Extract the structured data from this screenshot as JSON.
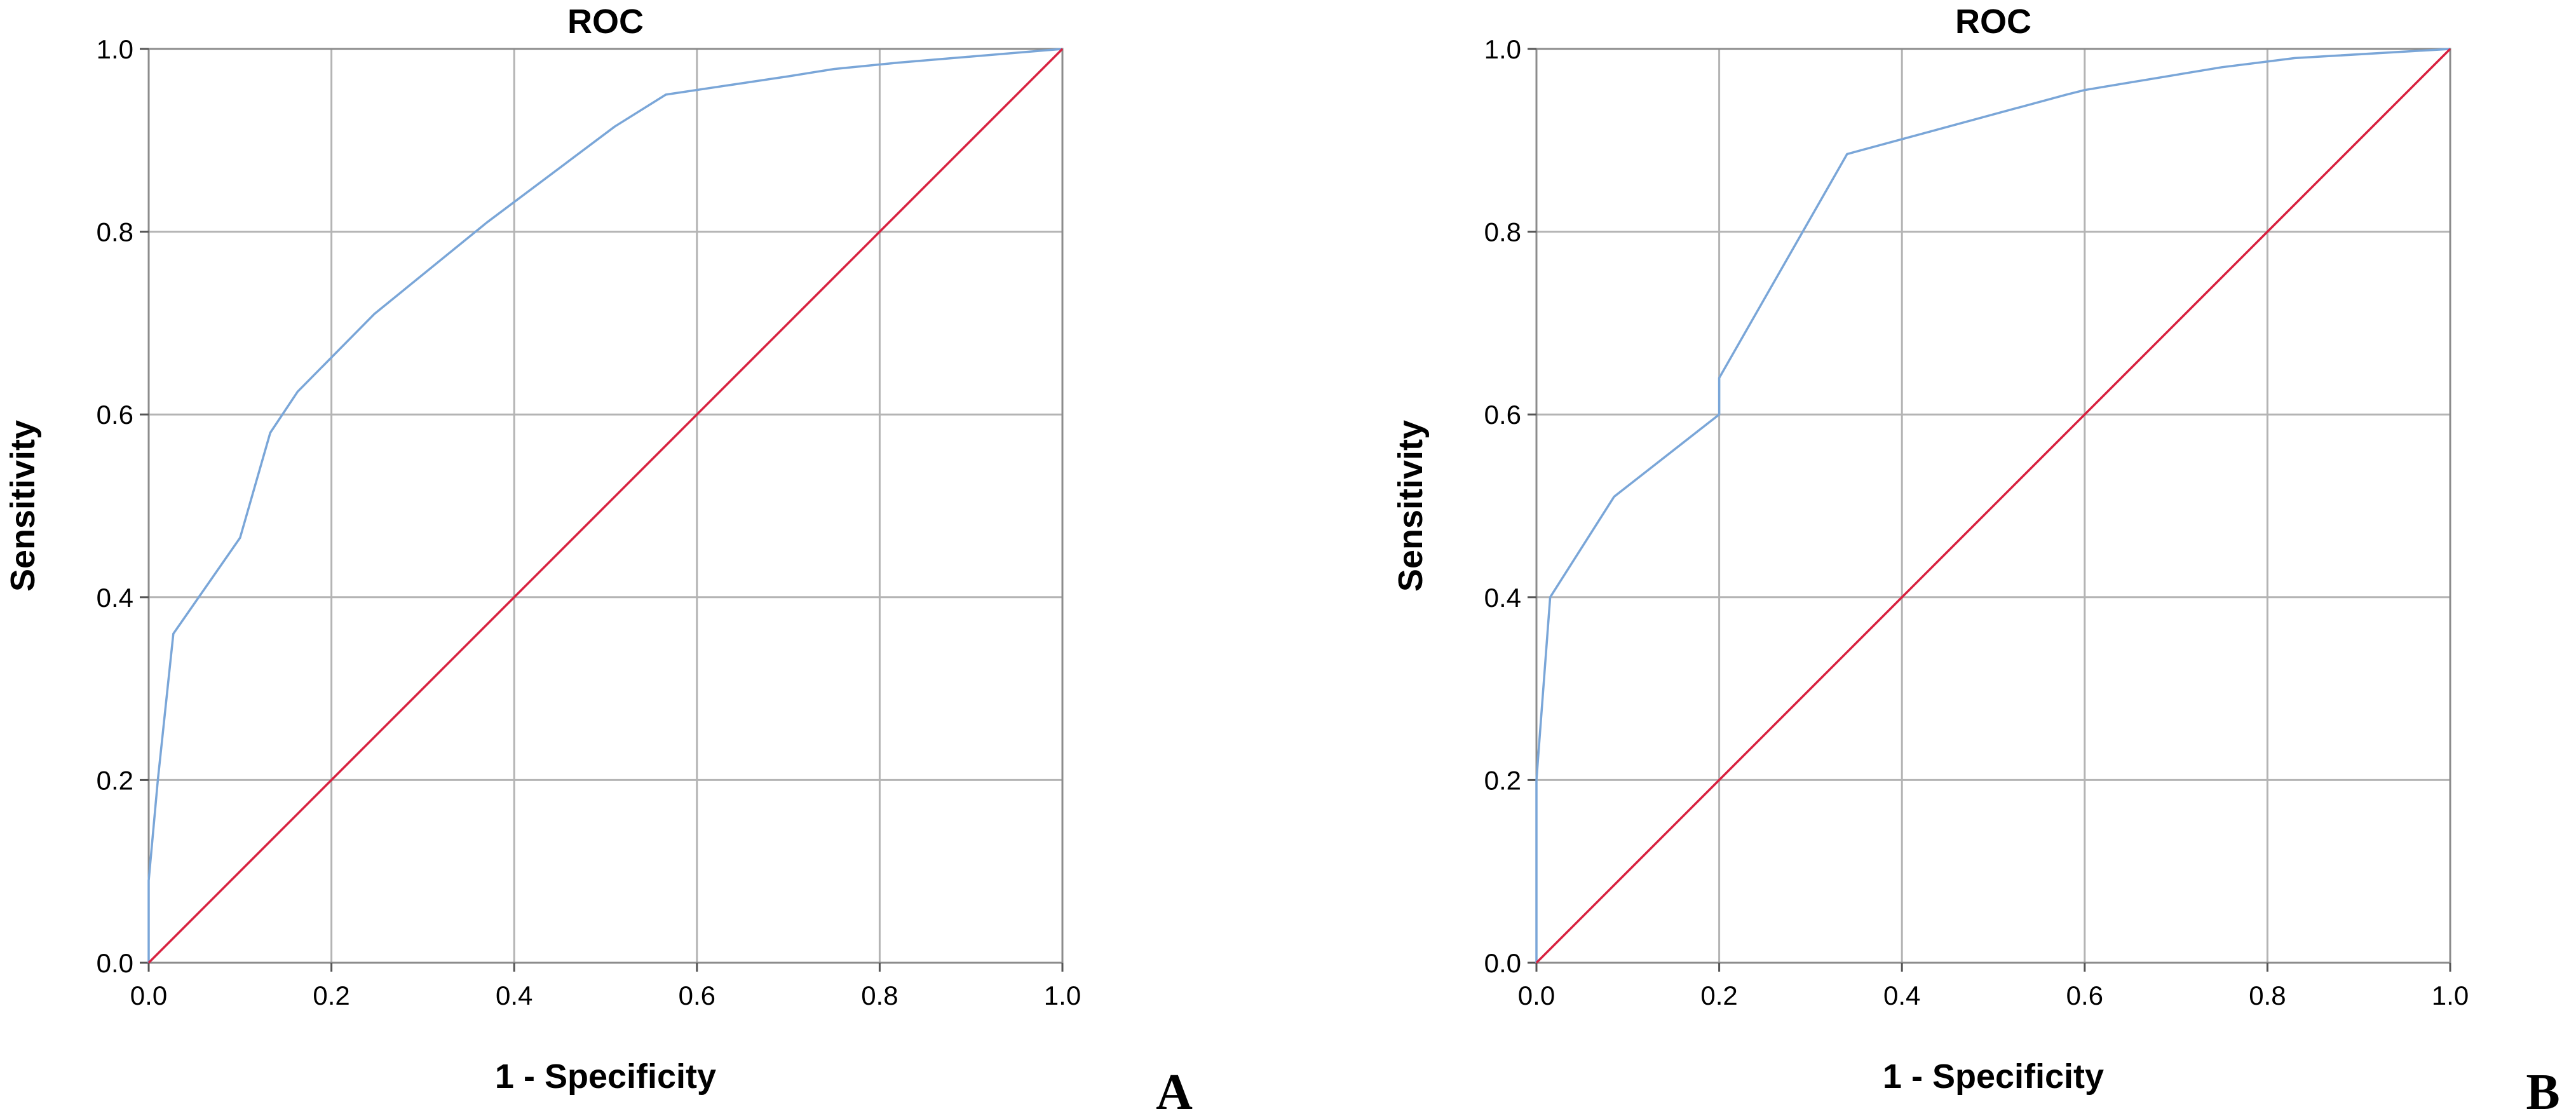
{
  "chart_data": [
    {
      "type": "line",
      "panel_label": "A",
      "title": "ROC",
      "xlabel": "1 - Specificity",
      "ylabel": "Sensitivity",
      "xlim": [
        0,
        1
      ],
      "ylim": [
        0,
        1
      ],
      "xticks": [
        "0.0",
        "0.2",
        "0.4",
        "0.6",
        "0.8",
        "1.0"
      ],
      "yticks": [
        "0.0",
        "0.2",
        "0.4",
        "0.6",
        "0.8",
        "1.0"
      ],
      "grid": true,
      "series": [
        {
          "color": "#7aa6d8",
          "x": [
            0,
            0,
            0.01,
            0.027,
            0.1,
            0.133,
            0.163,
            0.247,
            0.37,
            0.51,
            0.566,
            0.7,
            0.75,
            0.82,
            1.0
          ],
          "y": [
            0,
            0.09,
            0.2,
            0.36,
            0.465,
            0.58,
            0.625,
            0.71,
            0.81,
            0.915,
            0.95,
            0.97,
            0.978,
            0.985,
            1.0
          ]
        },
        {
          "color": "#d8213f",
          "x": [
            0,
            1
          ],
          "y": [
            0,
            1
          ]
        }
      ]
    },
    {
      "type": "line",
      "panel_label": "B",
      "title": "ROC",
      "xlabel": "1 - Specificity",
      "ylabel": "Sensitivity",
      "xlim": [
        0,
        1
      ],
      "ylim": [
        0,
        1
      ],
      "xticks": [
        "0.0",
        "0.2",
        "0.4",
        "0.6",
        "0.8",
        "1.0"
      ],
      "yticks": [
        "0.0",
        "0.2",
        "0.4",
        "0.6",
        "0.8",
        "1.0"
      ],
      "grid": true,
      "series": [
        {
          "color": "#7aa6d8",
          "x": [
            0,
            0,
            0.003,
            0.015,
            0.085,
            0.2,
            0.2,
            0.2,
            0.34,
            0.58,
            0.6,
            0.66,
            0.75,
            0.83,
            1.0
          ],
          "y": [
            0,
            0.2,
            0.24,
            0.4,
            0.51,
            0.6,
            0.625,
            0.64,
            0.885,
            0.95,
            0.955,
            0.965,
            0.98,
            0.99,
            1.0
          ]
        },
        {
          "color": "#d8213f",
          "x": [
            0,
            1
          ],
          "y": [
            0,
            1
          ]
        }
      ]
    }
  ]
}
